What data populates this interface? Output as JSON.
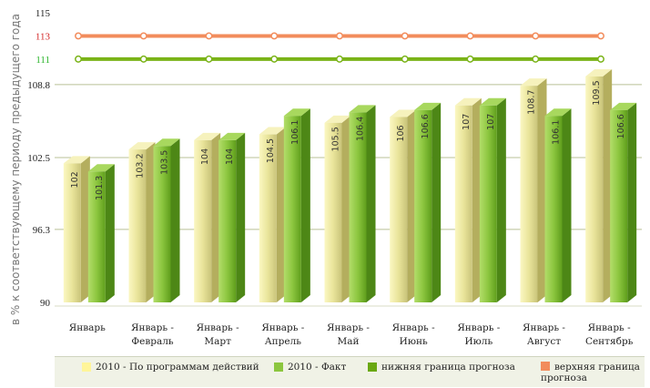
{
  "chart_data": {
    "type": "bar",
    "ylabel": "в % к соответствующему периоду предыдущего года",
    "ylim": [
      90,
      115
    ],
    "yticks": [
      {
        "value": 90,
        "label": "90",
        "color": "#222222"
      },
      {
        "value": 96.3,
        "label": "96.3",
        "color": "#222222"
      },
      {
        "value": 102.5,
        "label": "102.5",
        "color": "#222222"
      },
      {
        "value": 108.8,
        "label": "108.8",
        "color": "#222222"
      },
      {
        "value": 111,
        "label": "111",
        "color": "#2bb52b"
      },
      {
        "value": 113,
        "label": "113",
        "color": "#d42a2a"
      },
      {
        "value": 115,
        "label": "115",
        "color": "#222222"
      }
    ],
    "grid_values": [
      96.3,
      102.5,
      108.8
    ],
    "categories": [
      [
        "Январь"
      ],
      [
        "Январь -",
        "Февраль"
      ],
      [
        "Январь -",
        "Март"
      ],
      [
        "Январь -",
        "Апрель"
      ],
      [
        "Январь -",
        "Май"
      ],
      [
        "Январь -",
        "Июнь"
      ],
      [
        "Январь -",
        "Июль"
      ],
      [
        "Январь -",
        "Август"
      ],
      [
        "Январь -",
        "Сентябрь"
      ]
    ],
    "series": [
      {
        "name": "2010 - По программам действий",
        "type": "bar",
        "color": "#ede9a0",
        "values": [
          102,
          103.2,
          104,
          104.5,
          105.5,
          106,
          107,
          108.7,
          109.5
        ],
        "labels": [
          "102",
          "103.2",
          "104",
          "104.5",
          "105.5",
          "106",
          "107",
          "108.7",
          "109.5"
        ]
      },
      {
        "name": "2010 - Факт",
        "type": "bar",
        "color": "#8cc63f",
        "values": [
          101.3,
          103.5,
          104,
          106.1,
          106.4,
          106.6,
          107,
          106.1,
          106.6
        ],
        "labels": [
          "101.3",
          "103.5",
          "104",
          "106.1",
          "106.4",
          "106.6",
          "107",
          "106.1",
          "106.6"
        ]
      },
      {
        "name": "нижняя граница прогноза",
        "type": "line",
        "color": "#7ab317",
        "values": [
          111,
          111,
          111,
          111,
          111,
          111,
          111,
          111,
          111
        ]
      },
      {
        "name": "верхняя граница прогноза",
        "type": "line",
        "color": "#f28c5c",
        "values": [
          113,
          113,
          113,
          113,
          113,
          113,
          113,
          113,
          113
        ]
      }
    ],
    "legend": {
      "placement": "bottom",
      "items": [
        {
          "label": "2010 - По программам действий",
          "color": "#fff59a"
        },
        {
          "label": "2010 - Факт",
          "color": "#8cc63f"
        },
        {
          "label": "нижняя граница прогноза",
          "color": "#6aa812"
        },
        {
          "label": "верхняя граница прогноза",
          "color": "#f28c5c"
        }
      ]
    }
  }
}
